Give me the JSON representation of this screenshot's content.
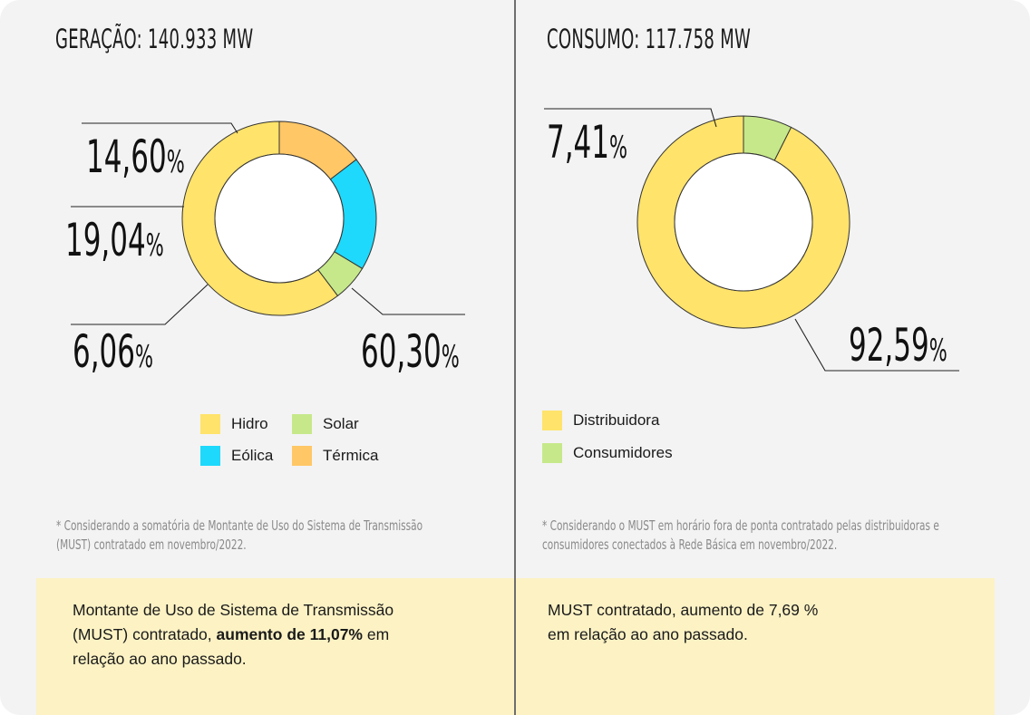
{
  "left_panel": {
    "title": "GERAÇÃO: 140.933 MW",
    "note_line1": "* Considerando a somatória de Montante de Uso do Sistema de Transmissão",
    "note_line2": "(MUST) contratado em novembro/2022.",
    "highlight": {
      "line1": "Montante de Uso de Sistema de Transmissão",
      "line2_normal": "(MUST) contratado, ",
      "line2_bold": "aumento de 11,07%",
      "line2_tail": " em",
      "line3": "relação ao ano passado."
    }
  },
  "right_panel": {
    "title": "CONSUMO: 117.758 MW",
    "note_line1": "* Considerando o MUST em horário fora de ponta contratado pelas distribuidoras e",
    "note_line2": "consumidores conectados à Rede Básica em novembro/2022.",
    "highlight": {
      "line1": "MUST contratado, aumento de 7,69 %",
      "line2": "em relação ao ano passado."
    }
  },
  "chart_data": [
    {
      "type": "pie",
      "variant": "donut",
      "title": "GERAÇÃO: 140.933 MW",
      "slices": [
        {
          "name": "Hidro",
          "value": 60.3,
          "label": "60,30",
          "color": "#ffe36b"
        },
        {
          "name": "Solar",
          "value": 6.06,
          "label": "6,06",
          "color": "#c6e88a"
        },
        {
          "name": "Eólica",
          "value": 19.04,
          "label": "19,04",
          "color": "#1ed9fb"
        },
        {
          "name": "Térmica",
          "value": 14.6,
          "label": "14,60",
          "color": "#ffc766"
        }
      ],
      "unit": "%",
      "legend": [
        {
          "name": "Hidro",
          "color": "#ffe36b"
        },
        {
          "name": "Solar",
          "color": "#c6e88a"
        },
        {
          "name": "Eólica",
          "color": "#1ed9fb"
        },
        {
          "name": "Térmica",
          "color": "#ffc766"
        }
      ],
      "legend_position": "bottom"
    },
    {
      "type": "pie",
      "variant": "donut",
      "title": "CONSUMO: 117.758 MW",
      "slices": [
        {
          "name": "Distribuidora",
          "value": 92.59,
          "label": "92,59",
          "color": "#ffe36b"
        },
        {
          "name": "Consumidores",
          "value": 7.41,
          "label": "7,41",
          "color": "#c6e88a"
        }
      ],
      "unit": "%",
      "legend": [
        {
          "name": "Distribuidora",
          "color": "#ffe36b"
        },
        {
          "name": "Consumidores",
          "color": "#c6e88a"
        }
      ],
      "legend_position": "bottom-left"
    }
  ]
}
